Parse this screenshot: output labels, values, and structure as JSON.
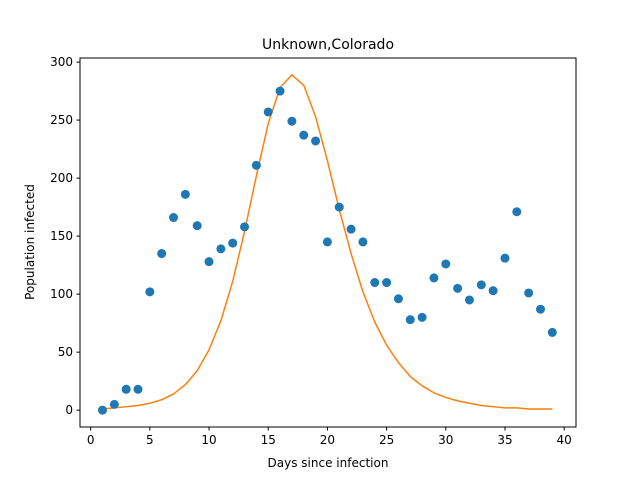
{
  "chart_data": {
    "type": "scatter",
    "title": "Unknown,Colorado",
    "xlabel": "Days since infection",
    "ylabel": "Population infected",
    "xlim": [
      -0.9,
      41
    ],
    "ylim": [
      -14.5,
      303.5
    ],
    "xticks": [
      0,
      5,
      10,
      15,
      20,
      25,
      30,
      35,
      40
    ],
    "yticks": [
      0,
      50,
      100,
      150,
      200,
      250,
      300
    ],
    "grid": false,
    "series": [
      {
        "type": "scatter",
        "color": "#1f77b4",
        "x": [
          1,
          2,
          3,
          4,
          5,
          6,
          7,
          8,
          9,
          10,
          11,
          12,
          13,
          14,
          15,
          16,
          17,
          18,
          19,
          20,
          21,
          22,
          23,
          24,
          25,
          26,
          27,
          28,
          29,
          30,
          31,
          32,
          33,
          34,
          35,
          36,
          37,
          38,
          39
        ],
        "y": [
          0,
          5,
          18,
          18,
          102,
          135,
          166,
          186,
          159,
          128,
          139,
          144,
          158,
          211,
          257,
          275,
          249,
          237,
          232,
          145,
          175,
          156,
          145,
          110,
          110,
          96,
          78,
          80,
          114,
          126,
          105,
          95,
          108,
          103,
          131,
          171,
          101,
          87,
          67
        ]
      },
      {
        "type": "line",
        "color": "#ff7f0e",
        "x": [
          1,
          2,
          3,
          4,
          5,
          6,
          7,
          8,
          9,
          10,
          11,
          12,
          13,
          14,
          15,
          16,
          17,
          18,
          19,
          20,
          21,
          22,
          23,
          24,
          25,
          26,
          27,
          28,
          29,
          30,
          31,
          32,
          33,
          34,
          35,
          36,
          37,
          38,
          39
        ],
        "y": [
          1,
          2,
          3,
          4,
          6,
          9,
          14,
          22,
          34,
          52,
          77,
          111,
          154,
          202,
          247,
          278,
          289,
          280,
          253,
          215,
          173,
          135,
          102,
          76,
          56,
          41,
          29,
          21,
          15,
          11,
          8,
          6,
          4,
          3,
          2,
          2,
          1,
          1,
          1
        ]
      }
    ]
  }
}
